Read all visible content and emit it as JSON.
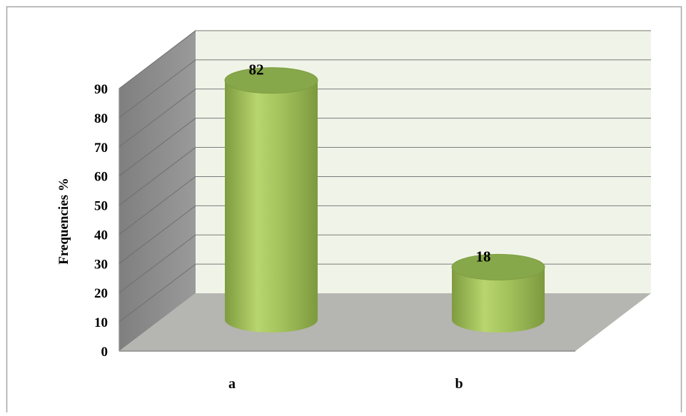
{
  "chart_data": {
    "type": "bar",
    "style": "3d-cylinder",
    "title": "",
    "xlabel": "",
    "ylabel": "Frequencies %",
    "categories": [
      "a",
      "b"
    ],
    "values": [
      82,
      18
    ],
    "data_labels": [
      "82",
      "18"
    ],
    "ylim": [
      0,
      90
    ],
    "yticks": [
      "0",
      "10",
      "20",
      "30",
      "40",
      "50",
      "60",
      "70",
      "80",
      "90"
    ],
    "grid": true,
    "legend": "none",
    "colors": {
      "bar_body": "#9bbb59",
      "bar_top": "#86a84a",
      "back_wall": "#f0f4e8",
      "side_wall": "#8c8c8c",
      "floor": "#b5b5b1",
      "border": "#a6a6a6"
    }
  }
}
